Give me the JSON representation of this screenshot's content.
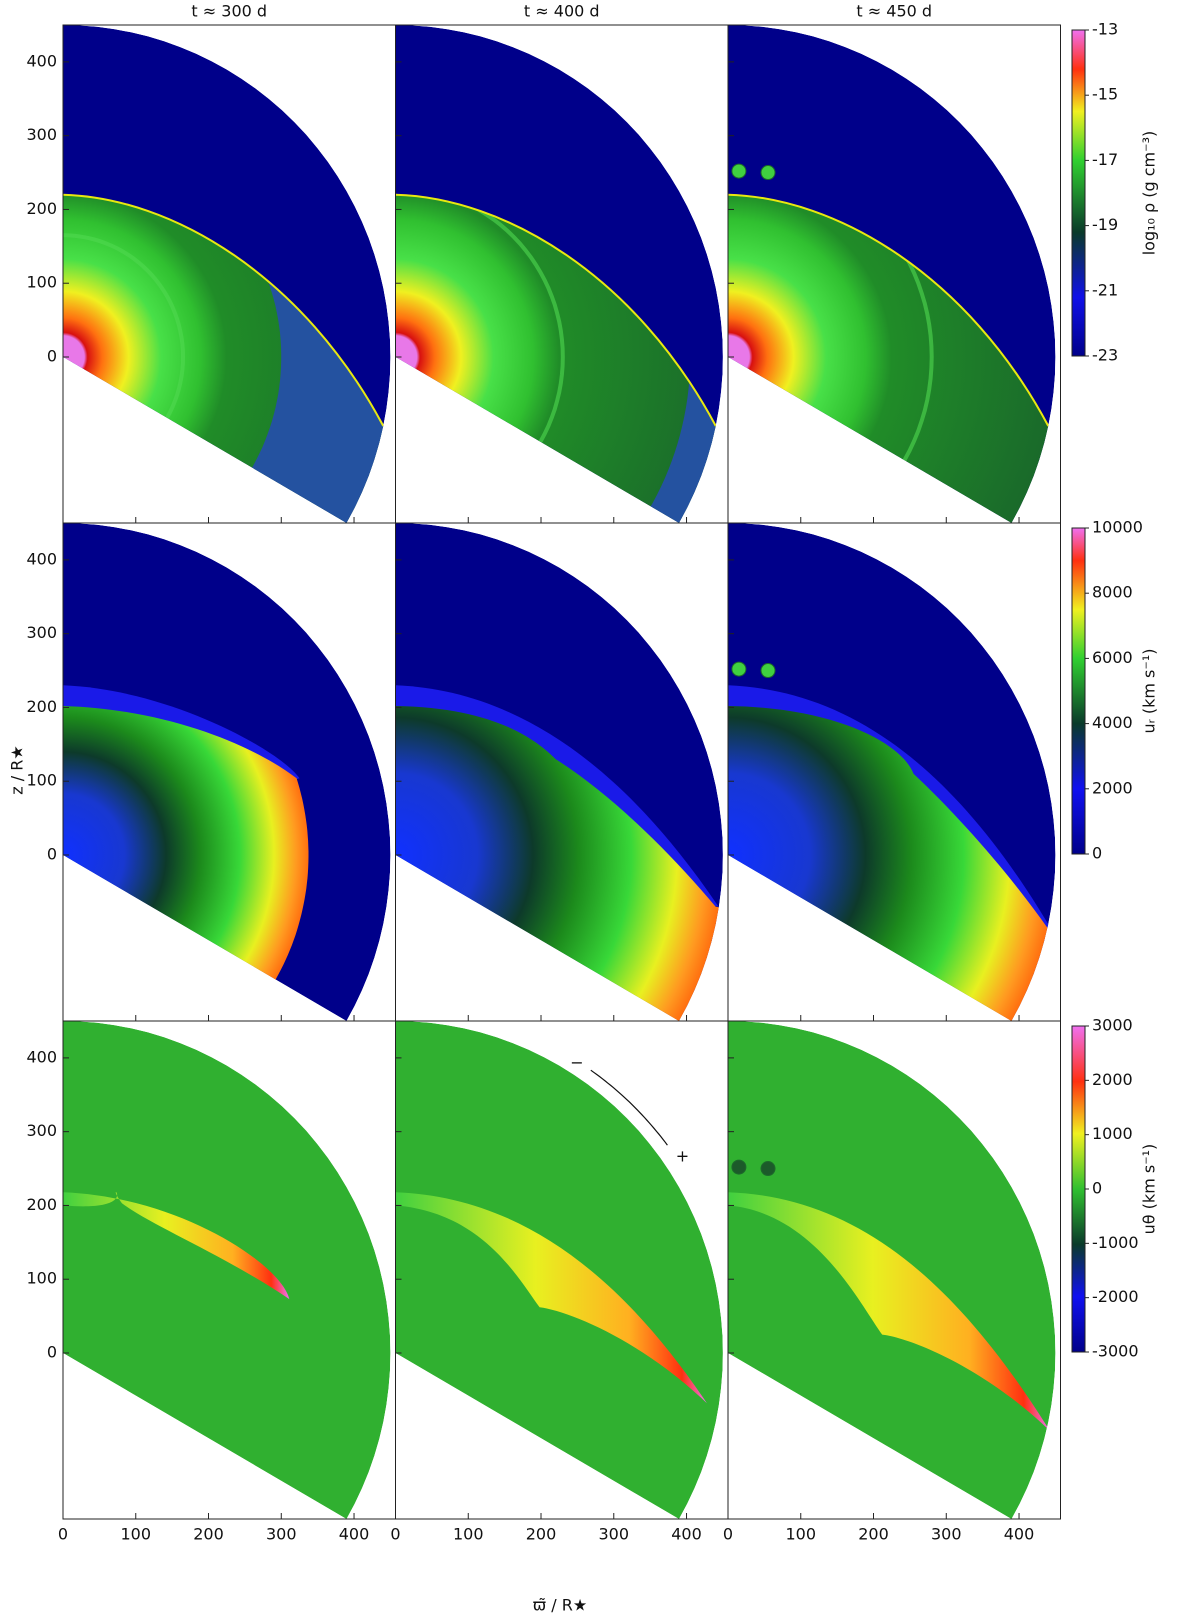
{
  "chart_data": {
    "type": "image-grid",
    "columns": [
      "t ≈ 300 d",
      "t ≈ 400 d",
      "t ≈ 450 d"
    ],
    "xlabel": "ϖ̃ / R★",
    "ylabel": "z / R★",
    "xlim": [
      0,
      457
    ],
    "ylim": [
      -225,
      450
    ],
    "xticks": [
      0,
      100,
      200,
      300,
      400
    ],
    "yticks": [
      0,
      100,
      200,
      300,
      400
    ],
    "rows": [
      {
        "colorbar_label": "log₁₀ ρ (g cm⁻³)",
        "clim": [
          -23,
          -13
        ],
        "cticks": [
          -13,
          -15,
          -17,
          -19,
          -21,
          -23
        ]
      },
      {
        "colorbar_label": "uᵣ (km s⁻¹)",
        "clim": [
          0,
          10000
        ],
        "cticks": [
          10000,
          8000,
          6000,
          4000,
          2000,
          0
        ]
      },
      {
        "colorbar_label": "uθ (km s⁻¹)",
        "clim": [
          -3000,
          3000
        ],
        "cticks": [
          3000,
          2000,
          1000,
          0,
          -1000,
          -2000,
          -3000
        ]
      }
    ],
    "annotations": [
      "−",
      "+"
    ]
  }
}
